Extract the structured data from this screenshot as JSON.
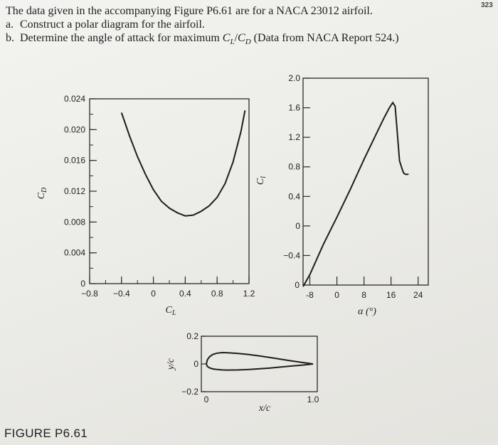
{
  "problem": {
    "intro": "The data given in the accompanying Figure P6.61 are for a NACA 23012 airfoil.",
    "a_label": "a.",
    "a_text": "Construct a polar diagram for the airfoil.",
    "b_label": "b.",
    "b_text": "Determine the angle of attack for maximum C_L/C_D (Data from NACA Report 524.)"
  },
  "figure_label": "FIGURE P6.61",
  "corner_number": "323",
  "chart_data": [
    {
      "type": "line",
      "xlabel": "C_L",
      "ylabel": "C_D",
      "xlim": [
        -0.8,
        1.2
      ],
      "ylim": [
        0,
        0.024
      ],
      "xticks": [
        "-0.8",
        "-0.4",
        "0",
        "0.4",
        "0.8",
        "1.2"
      ],
      "yticks": [
        "0",
        "0.004",
        "0.008",
        "0.012",
        "0.016",
        "0.020",
        "0.024"
      ],
      "x": [
        -0.4,
        -0.3,
        -0.2,
        -0.1,
        0.0,
        0.1,
        0.2,
        0.3,
        0.4,
        0.5,
        0.6,
        0.7,
        0.8,
        0.9,
        1.0,
        1.1,
        1.15
      ],
      "y": [
        0.0222,
        0.0192,
        0.0165,
        0.0142,
        0.0122,
        0.0107,
        0.0098,
        0.0092,
        0.0088,
        0.0089,
        0.0094,
        0.0101,
        0.0112,
        0.013,
        0.0158,
        0.0198,
        0.0225
      ]
    },
    {
      "type": "line",
      "xlabel": "α (°)",
      "ylabel": "C_l",
      "xlim": [
        -10,
        27
      ],
      "ylim": [
        -0.8,
        2.0
      ],
      "xticks": [
        "-8",
        "0",
        "8",
        "16",
        "24"
      ],
      "yticks": [
        "-0.4",
        "0",
        "0.4",
        "0.8",
        "1.2",
        "1.6",
        "2.0"
      ],
      "x": [
        -10,
        -8,
        -4,
        0,
        4,
        8,
        12,
        14,
        15.5,
        16.5,
        17.2,
        17.6,
        18.5,
        19.5
      ],
      "y": [
        -0.82,
        -0.66,
        -0.25,
        0.12,
        0.5,
        0.9,
        1.28,
        1.47,
        1.6,
        1.67,
        1.62,
        1.4,
        0.88,
        0.74
      ]
    },
    {
      "type": "line",
      "xlabel": "x/c",
      "ylabel": "y/c",
      "xlim": [
        0,
        1.0
      ],
      "ylim": [
        -0.2,
        0.2
      ],
      "xticks": [
        "0",
        "1.0"
      ],
      "yticks": [
        "-0.2",
        "0",
        "0.2"
      ],
      "upper_x": [
        0,
        0.01,
        0.03,
        0.06,
        0.1,
        0.15,
        0.2,
        0.3,
        0.4,
        0.5,
        0.6,
        0.7,
        0.8,
        0.9,
        1.0
      ],
      "upper_y": [
        0,
        0.03,
        0.052,
        0.068,
        0.078,
        0.082,
        0.081,
        0.076,
        0.068,
        0.058,
        0.046,
        0.034,
        0.022,
        0.011,
        0.0
      ],
      "lower_x": [
        0,
        0.01,
        0.03,
        0.06,
        0.1,
        0.15,
        0.2,
        0.3,
        0.4,
        0.5,
        0.6,
        0.7,
        0.8,
        0.9,
        1.0
      ],
      "lower_y": [
        0,
        -0.018,
        -0.028,
        -0.036,
        -0.04,
        -0.043,
        -0.044,
        -0.043,
        -0.04,
        -0.035,
        -0.029,
        -0.022,
        -0.015,
        -0.008,
        0.0
      ]
    }
  ]
}
